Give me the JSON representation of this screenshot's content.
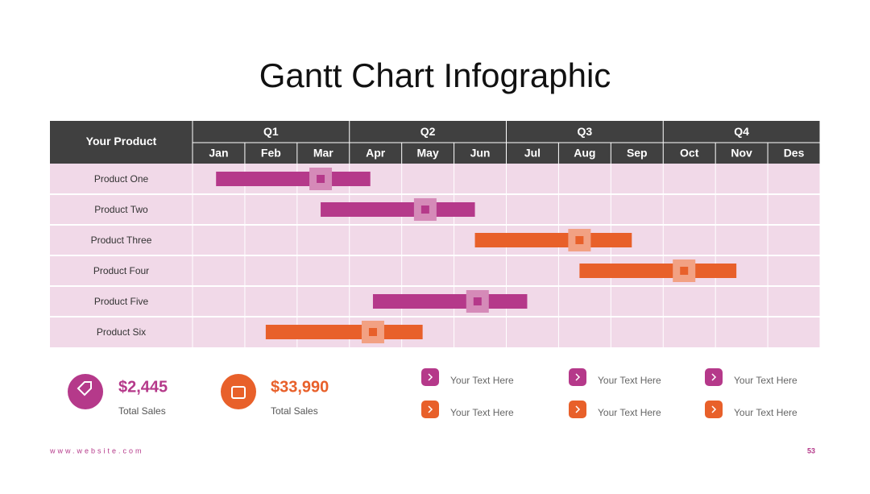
{
  "title": "Gantt Chart Infographic",
  "chart_data": {
    "type": "gantt",
    "header": "Your Product",
    "quarters": [
      "Q1",
      "Q2",
      "Q3",
      "Q4"
    ],
    "months": [
      "Jan",
      "Feb",
      "Mar",
      "Apr",
      "May",
      "Jun",
      "Jul",
      "Aug",
      "Sep",
      "Oct",
      "Nov",
      "Des"
    ],
    "xlim": [
      0,
      12
    ],
    "categories": [
      "Product One",
      "Product Two",
      "Product Three",
      "Product Four",
      "Product Five",
      "Product Six"
    ],
    "tasks": [
      {
        "start": 0.45,
        "end": 3.4,
        "milestone": 2.45,
        "color": "#b5398a",
        "marker_color": "#d58ab8"
      },
      {
        "start": 2.45,
        "end": 5.4,
        "milestone": 4.45,
        "color": "#b5398a",
        "marker_color": "#d58ab8"
      },
      {
        "start": 5.4,
        "end": 8.4,
        "milestone": 7.4,
        "color": "#e8602a",
        "marker_color": "#f2a183"
      },
      {
        "start": 7.4,
        "end": 10.4,
        "milestone": 9.4,
        "color": "#e8602a",
        "marker_color": "#f2a183"
      },
      {
        "start": 3.45,
        "end": 6.4,
        "milestone": 5.45,
        "color": "#b5398a",
        "marker_color": "#d58ab8"
      },
      {
        "start": 1.4,
        "end": 4.4,
        "milestone": 3.45,
        "color": "#e8602a",
        "marker_color": "#f2a183"
      }
    ]
  },
  "stats": [
    {
      "value": "$2,445",
      "label": "Total Sales"
    },
    {
      "value": "$33,990",
      "label": "Total Sales"
    }
  ],
  "items": [
    [
      "Your Text Here",
      "Your Text Here"
    ],
    [
      "Your Text Here",
      "Your Text Here"
    ],
    [
      "Your Text Here",
      "Your Text Here"
    ]
  ],
  "footer": {
    "website": "www.website.com",
    "page": "53"
  }
}
